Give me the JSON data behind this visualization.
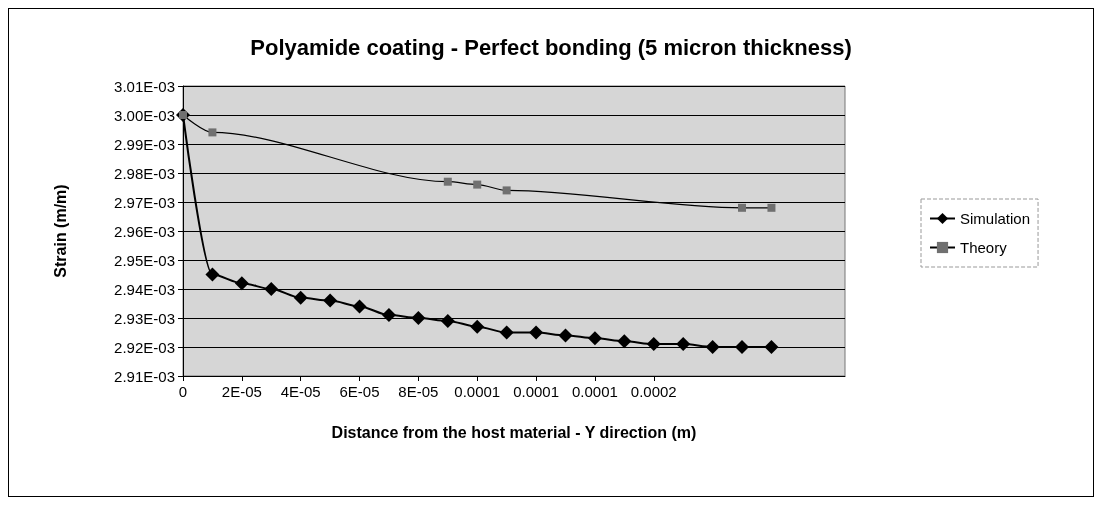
{
  "chart_data": {
    "type": "line",
    "title": "Polyamide coating - Perfect bonding (5 micron thickness)",
    "xlabel": "Distance from the host material - Y direction (m)",
    "ylabel": "Strain (m/m)",
    "xlim": [
      0,
      0.000225
    ],
    "ylim": [
      0.00291,
      0.00301
    ],
    "xticks": [
      0,
      {
        "value": 2e-05,
        "label": "2E-05"
      },
      {
        "value": 4e-05,
        "label": "4E-05"
      },
      {
        "value": 6e-05,
        "label": "6E-05"
      },
      {
        "value": 8e-05,
        "label": "8E-05"
      },
      {
        "value": 0.0001,
        "label": "0.0001"
      },
      {
        "value": 0.00012,
        "label": "0.0001"
      },
      {
        "value": 0.00014,
        "label": "0.0001"
      },
      {
        "value": 0.00016,
        "label": "0.0002"
      }
    ],
    "yticks": [
      {
        "value": 0.00291,
        "label": "2.91E-03"
      },
      {
        "value": 0.00292,
        "label": "2.92E-03"
      },
      {
        "value": 0.00293,
        "label": "2.93E-03"
      },
      {
        "value": 0.00294,
        "label": "2.94E-03"
      },
      {
        "value": 0.00295,
        "label": "2.95E-03"
      },
      {
        "value": 0.00296,
        "label": "2.96E-03"
      },
      {
        "value": 0.00297,
        "label": "2.97E-03"
      },
      {
        "value": 0.00298,
        "label": "2.98E-03"
      },
      {
        "value": 0.00299,
        "label": "2.99E-03"
      },
      {
        "value": 0.003,
        "label": "3.00E-03"
      },
      {
        "value": 0.00301,
        "label": "3.01E-03"
      }
    ],
    "grid": "y",
    "legend": "right",
    "series": [
      {
        "name": "Simulation",
        "color": "#000000",
        "marker": "diamond",
        "x": [
          0,
          1e-05,
          2e-05,
          3e-05,
          4e-05,
          5e-05,
          6e-05,
          7e-05,
          8e-05,
          9e-05,
          0.0001,
          0.00011,
          0.00012,
          0.00013,
          0.00014,
          0.00015,
          0.00016,
          0.00017,
          0.00018,
          0.00019,
          0.0002
        ],
        "values": [
          0.003,
          0.002945,
          0.002942,
          0.00294,
          0.002937,
          0.002936,
          0.002934,
          0.002931,
          0.00293,
          0.002929,
          0.002927,
          0.002925,
          0.002925,
          0.002924,
          0.002923,
          0.002922,
          0.002921,
          0.002921,
          0.00292,
          0.00292,
          0.00292
        ]
      },
      {
        "name": "Theory",
        "color": "#707070",
        "marker": "square",
        "x": [
          0,
          1e-05,
          9e-05,
          0.0001,
          0.00011,
          0.00019,
          0.0002
        ],
        "values": [
          0.003,
          0.002994,
          0.002977,
          0.002976,
          0.002974,
          0.002968,
          0.002968
        ]
      }
    ]
  }
}
